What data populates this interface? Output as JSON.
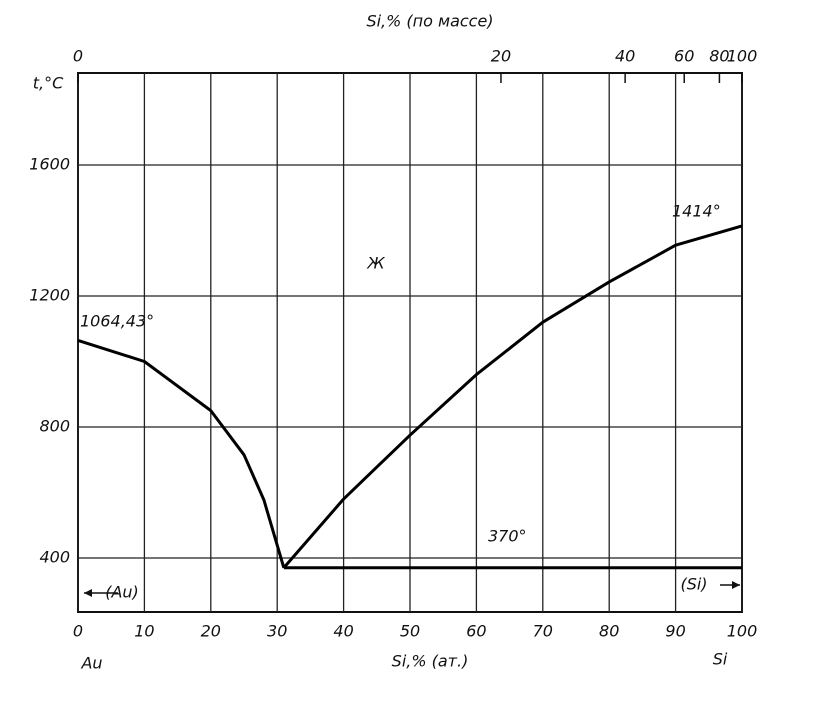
{
  "chart_data": {
    "type": "line",
    "title": "Si,% (по массе)",
    "x_label": "Si,% (ат.)",
    "y_label": "t,°C",
    "xlim": [
      0,
      100
    ],
    "ylim": [
      235,
      1881
    ],
    "xticks": [
      0,
      10,
      20,
      30,
      40,
      50,
      60,
      70,
      80,
      90,
      100
    ],
    "yticks": [
      400,
      800,
      1200,
      1600
    ],
    "x2ticks": [
      {
        "value": 0,
        "label": "0"
      },
      {
        "value": 63.7,
        "label": "20"
      },
      {
        "value": 82.4,
        "label": "40"
      },
      {
        "value": 91.3,
        "label": "60"
      },
      {
        "value": 96.6,
        "label": "80"
      },
      {
        "value": 100,
        "label": "100"
      }
    ],
    "grid": true,
    "color": "#000000",
    "series": [
      {
        "name": "liquidus-au",
        "x": [
          0,
          10,
          20,
          25,
          28,
          31
        ],
        "values": [
          1064.43,
          1000,
          850,
          715,
          577,
          370
        ]
      },
      {
        "name": "liquidus-si",
        "x": [
          31,
          40,
          50,
          60,
          70,
          80,
          90,
          100
        ],
        "values": [
          370,
          580,
          775,
          960,
          1120,
          1243,
          1355,
          1414
        ]
      },
      {
        "name": "eutectic",
        "x": [
          31,
          100
        ],
        "values": [
          370,
          370
        ]
      }
    ],
    "annotations": [
      "1064,43°",
      "1414°",
      "370°",
      "Ж",
      "(Au)",
      "(Si)",
      "Au",
      "Si"
    ]
  }
}
